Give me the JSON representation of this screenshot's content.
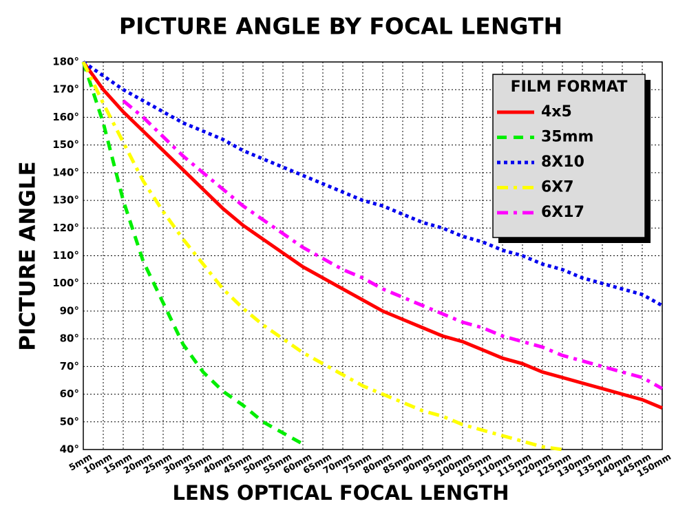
{
  "chart_data": {
    "type": "line",
    "title": "PICTURE ANGLE BY FOCAL LENGTH",
    "x_label": "LENS OPTICAL FOCAL LENGTH",
    "y_label": "PICTURE ANGLE",
    "legend_title": "FILM FORMAT",
    "legend": "upper right",
    "grid": true,
    "x": [
      5,
      10,
      15,
      20,
      25,
      30,
      35,
      40,
      45,
      50,
      55,
      60,
      65,
      70,
      75,
      80,
      85,
      90,
      95,
      100,
      105,
      110,
      115,
      120,
      125,
      130,
      135,
      140,
      145,
      150
    ],
    "xlim": [
      5,
      150
    ],
    "ylim": [
      40,
      180
    ],
    "xticks": [
      {
        "value": 5,
        "label": "5mm"
      },
      {
        "value": 10,
        "label": "10mm"
      },
      {
        "value": 15,
        "label": "15mm"
      },
      {
        "value": 20,
        "label": "20mm"
      },
      {
        "value": 25,
        "label": "25mm"
      },
      {
        "value": 30,
        "label": "30mm"
      },
      {
        "value": 35,
        "label": "35mm"
      },
      {
        "value": 40,
        "label": "40mm"
      },
      {
        "value": 45,
        "label": "45mm"
      },
      {
        "value": 50,
        "label": "50mm"
      },
      {
        "value": 55,
        "label": "55mm"
      },
      {
        "value": 60,
        "label": "60mm"
      },
      {
        "value": 65,
        "label": "65mm"
      },
      {
        "value": 70,
        "label": "70mm"
      },
      {
        "value": 75,
        "label": "75mm"
      },
      {
        "value": 80,
        "label": "80mm"
      },
      {
        "value": 85,
        "label": "85mm"
      },
      {
        "value": 90,
        "label": "90mm"
      },
      {
        "value": 95,
        "label": "95mm"
      },
      {
        "value": 100,
        "label": "100mm"
      },
      {
        "value": 105,
        "label": "105mm"
      },
      {
        "value": 110,
        "label": "110mm"
      },
      {
        "value": 115,
        "label": "115mm"
      },
      {
        "value": 120,
        "label": "120mm"
      },
      {
        "value": 125,
        "label": "125mm"
      },
      {
        "value": 130,
        "label": "130mm"
      },
      {
        "value": 135,
        "label": "135mm"
      },
      {
        "value": 140,
        "label": "140mm"
      },
      {
        "value": 145,
        "label": "145mm"
      },
      {
        "value": 150,
        "label": "150mm"
      }
    ],
    "yticks": [
      {
        "value": 40,
        "label": "40°"
      },
      {
        "value": 50,
        "label": "50°"
      },
      {
        "value": 60,
        "label": "60°"
      },
      {
        "value": 70,
        "label": "70°"
      },
      {
        "value": 80,
        "label": "80°"
      },
      {
        "value": 90,
        "label": "90°"
      },
      {
        "value": 100,
        "label": "100°"
      },
      {
        "value": 110,
        "label": "110°"
      },
      {
        "value": 120,
        "label": "120°"
      },
      {
        "value": 130,
        "label": "130°"
      },
      {
        "value": 140,
        "label": "140°"
      },
      {
        "value": 150,
        "label": "150°"
      },
      {
        "value": 160,
        "label": "160°"
      },
      {
        "value": 170,
        "label": "170°"
      },
      {
        "value": 180,
        "label": "180°"
      }
    ],
    "series": [
      {
        "name": "4x5",
        "color": "#ff0000",
        "style": "solid",
        "values": [
          180,
          170,
          162,
          155,
          148,
          141,
          134,
          127,
          121,
          116,
          111,
          106,
          102,
          98,
          94,
          90,
          87,
          84,
          81,
          79,
          76,
          73,
          71,
          68,
          66,
          64,
          62,
          60,
          58,
          55
        ]
      },
      {
        "name": "35mm",
        "color": "#00ee00",
        "style": "dashed",
        "values": [
          180,
          158,
          130,
          108,
          93,
          78,
          68,
          61,
          56,
          50,
          46,
          42,
          null,
          null,
          null,
          null,
          null,
          null,
          null,
          null,
          null,
          null,
          null,
          null,
          null,
          null,
          null,
          null,
          null,
          null
        ]
      },
      {
        "name": "8X10",
        "color": "#0000ee",
        "style": "dotted",
        "values": [
          180,
          175,
          170,
          166,
          162,
          158,
          155,
          152,
          148,
          145,
          142,
          139,
          136,
          133,
          130,
          128,
          125,
          122,
          120,
          117,
          115,
          112,
          110,
          107,
          105,
          102,
          100,
          98,
          96,
          92
        ]
      },
      {
        "name": "6X7",
        "color": "#ffff00",
        "style": "dashdot",
        "values": [
          180,
          165,
          151,
          137,
          126,
          116,
          107,
          98,
          91,
          85,
          80,
          75,
          71,
          67,
          63,
          60,
          57,
          54,
          52,
          49,
          47,
          45,
          43,
          41,
          40,
          null,
          null,
          null,
          null,
          null
        ]
      },
      {
        "name": "6X17",
        "color": "#ff00ff",
        "style": "dashdot",
        "values": [
          null,
          null,
          166,
          160,
          153,
          146,
          140,
          134,
          128,
          123,
          118,
          113,
          109,
          105,
          102,
          98,
          95,
          92,
          89,
          86,
          84,
          81,
          79,
          77,
          74,
          72,
          70,
          68,
          66,
          62
        ]
      }
    ]
  }
}
